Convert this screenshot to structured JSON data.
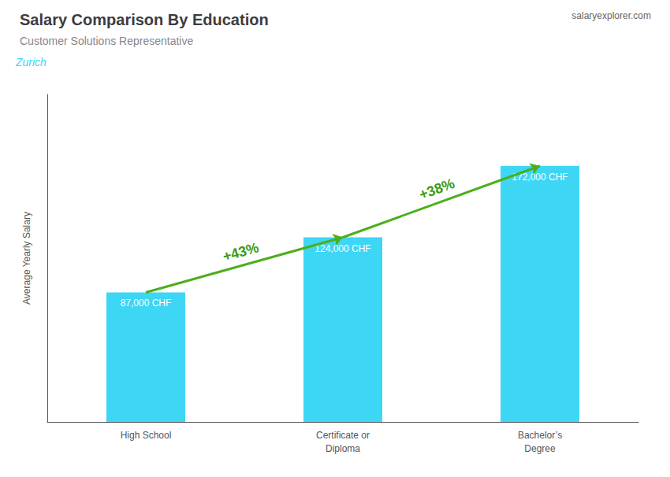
{
  "chart_data": {
    "type": "bar",
    "title": "Salary Comparison By Education",
    "subtitle": "Customer Solutions Representative",
    "annotations": [
      "Zurich",
      "salaryexplorer.com",
      "+43%",
      "+38%"
    ],
    "ylabel": "Average Yearly Salary",
    "categories": [
      "High School",
      "Certificate or\nDiploma",
      "Bachelor’s\nDegree"
    ],
    "values": [
      87000,
      124000,
      172000
    ],
    "value_labels": [
      "87,000 CHF",
      "124,000 CHF",
      "172,000 CHF"
    ],
    "data_labels": true,
    "color": "#3dd6f5",
    "ylim": [
      0,
      220000
    ],
    "tick_labels": "x",
    "grid": false
  }
}
